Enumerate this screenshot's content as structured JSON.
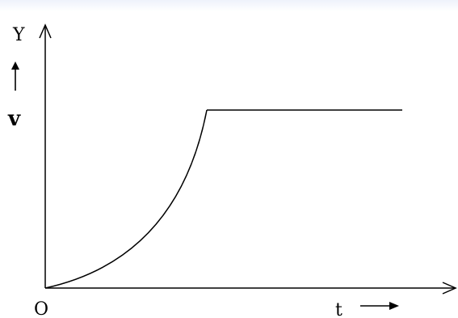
{
  "diagram": {
    "y_axis_label": "Y",
    "velocity_label": "v",
    "origin_label": "O",
    "time_label": "t",
    "curve_description_parts": [
      "curved-rise",
      "constant-plateau"
    ],
    "colors": {
      "background": "#ffffff",
      "top_tint": "#eef2fb",
      "ink": "#000000"
    }
  }
}
